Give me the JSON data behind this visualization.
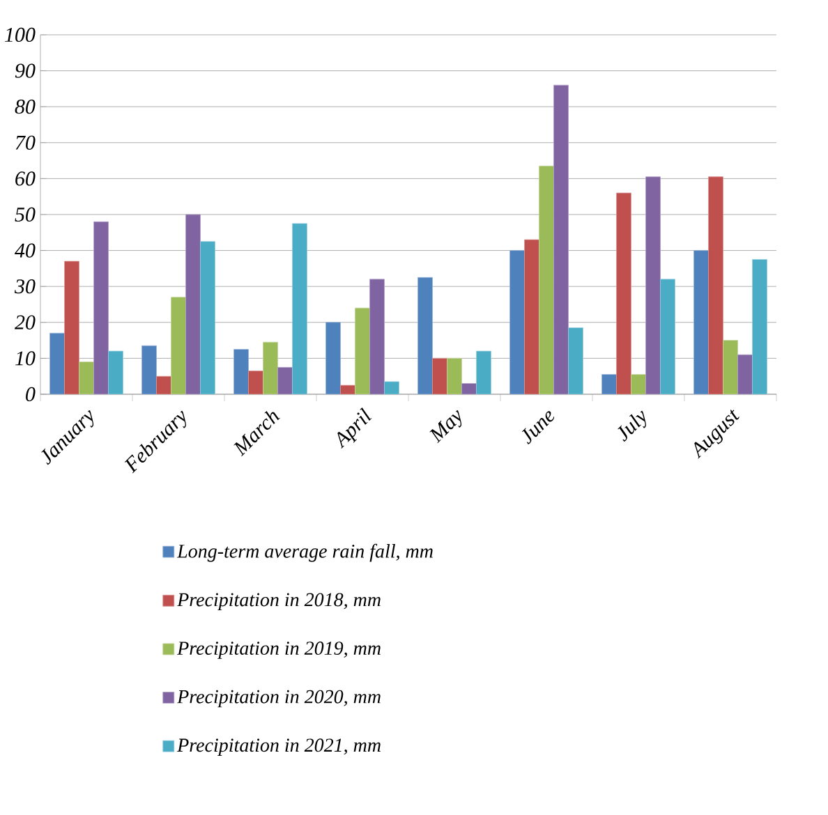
{
  "chart_data": {
    "type": "bar",
    "categories": [
      "January",
      "February",
      "March",
      "April",
      "May",
      "June",
      "July",
      "August"
    ],
    "series": [
      {
        "name": "Long-term average rain fall, mm",
        "color": "#4f81bd",
        "values": [
          17,
          13.5,
          12.5,
          20,
          32.5,
          40,
          5.5,
          40
        ]
      },
      {
        "name": "Precipitation in 2018, mm",
        "color": "#c0504d",
        "values": [
          37,
          5,
          6.5,
          2.5,
          10,
          43,
          56,
          60.5
        ]
      },
      {
        "name": "Precipitation in 2019, mm",
        "color": "#9bbb59",
        "values": [
          9,
          27,
          14.5,
          24,
          10,
          63.5,
          5.5,
          15
        ]
      },
      {
        "name": "Precipitation in 2020, mm",
        "color": "#8064a2",
        "values": [
          48,
          50,
          7.5,
          32,
          3,
          86,
          60.5,
          11
        ]
      },
      {
        "name": "Precipitation in 2021, mm",
        "color": "#4bacc6",
        "values": [
          12,
          42.5,
          47.5,
          3.5,
          12,
          18.5,
          32,
          37.5
        ]
      }
    ],
    "ylim": [
      0,
      100
    ],
    "yticks": [
      0,
      10,
      20,
      30,
      40,
      50,
      60,
      70,
      80,
      90,
      100
    ],
    "grid": "y",
    "legend": "bottom"
  }
}
